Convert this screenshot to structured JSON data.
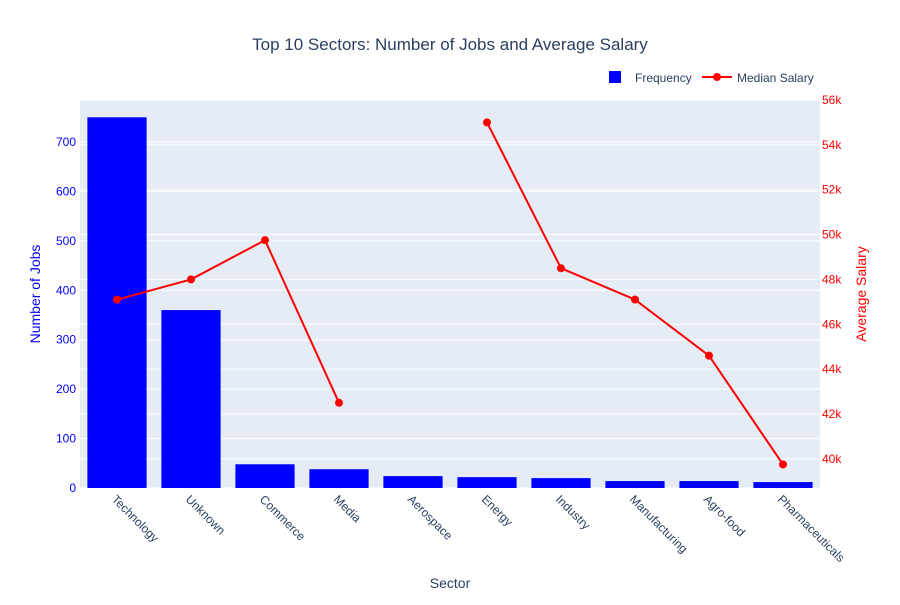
{
  "chart_data": {
    "type": "bar",
    "title": "Top 10 Sectors: Number of Jobs and Average Salary",
    "xlabel": "Sector",
    "ylabel": "Number of Jobs",
    "y2label": "Average Salary",
    "categories": [
      "Technology",
      "Unknown",
      "Commerce",
      "Media",
      "Aerospace",
      "Energy",
      "Industry",
      "Manufacturing",
      "Agro-food",
      "Pharmaceuticals"
    ],
    "ylim": [
      0,
      785
    ],
    "y2lim": [
      38700,
      56000
    ],
    "yticks": [
      0,
      100,
      200,
      300,
      400,
      500,
      600,
      700
    ],
    "y2ticks": [
      {
        "value": 40000,
        "label": "40k"
      },
      {
        "value": 42000,
        "label": "42k"
      },
      {
        "value": 44000,
        "label": "44k"
      },
      {
        "value": 46000,
        "label": "46k"
      },
      {
        "value": 48000,
        "label": "48k"
      },
      {
        "value": 50000,
        "label": "50k"
      },
      {
        "value": 52000,
        "label": "52k"
      },
      {
        "value": 54000,
        "label": "54k"
      },
      {
        "value": 56000,
        "label": "56k"
      }
    ],
    "series": [
      {
        "name": "Frequency",
        "type": "bar",
        "axis": "left",
        "color": "#0000ff",
        "values": [
          750,
          360,
          48,
          38,
          24,
          22,
          20,
          14,
          14,
          12
        ]
      },
      {
        "name": "Median Salary",
        "type": "line",
        "axis": "right",
        "color": "#ff0000",
        "values": [
          47100,
          48000,
          49750,
          42500,
          null,
          55000,
          48500,
          47100,
          44600,
          39750
        ]
      }
    ],
    "legend": "top-right",
    "grid": true
  },
  "colors": {
    "plot_bg": "#e5ecf6",
    "grid": "#ffffff",
    "left_axis": "#0000ff",
    "right_axis": "#ff0000",
    "text": "#2a3f5f"
  }
}
